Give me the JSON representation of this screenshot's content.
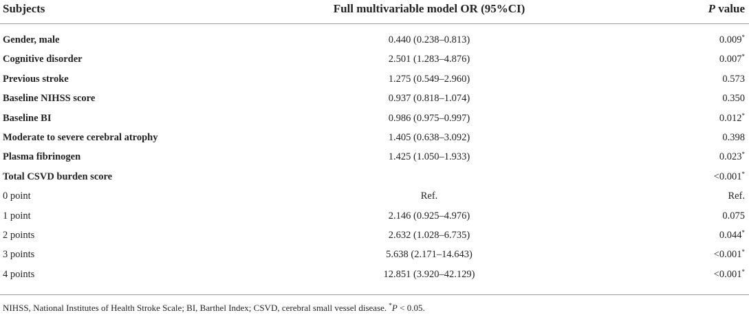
{
  "table": {
    "headers": {
      "subjects": "Subjects",
      "or": "Full multivariable model OR (95%CI)",
      "p_italic": "P",
      "p_rest": " value"
    },
    "rows": [
      {
        "subject": "Gender, male",
        "bold": true,
        "or": "0.440 (0.238–0.813)",
        "p": "0.009",
        "sig": "*"
      },
      {
        "subject": "Cognitive disorder",
        "bold": true,
        "or": "2.501 (1.283–4.876)",
        "p": "0.007",
        "sig": "*"
      },
      {
        "subject": "Previous stroke",
        "bold": true,
        "or": "1.275 (0.549–2.960)",
        "p": "0.573",
        "sig": ""
      },
      {
        "subject": "Baseline NIHSS score",
        "bold": true,
        "or": "0.937 (0.818–1.074)",
        "p": "0.350",
        "sig": ""
      },
      {
        "subject": "Baseline BI",
        "bold": true,
        "or": "0.986 (0.975–0.997)",
        "p": "0.012",
        "sig": "*"
      },
      {
        "subject": "Moderate to severe cerebral atrophy",
        "bold": true,
        "or": "1.405 (0.638–3.092)",
        "p": "0.398",
        "sig": ""
      },
      {
        "subject": "Plasma fibrinogen",
        "bold": true,
        "or": "1.425 (1.050–1.933)",
        "p": "0.023",
        "sig": "*"
      },
      {
        "subject": "Total CSVD burden score",
        "bold": true,
        "or": "",
        "p": "<0.001",
        "sig": "*"
      },
      {
        "subject": "0 point",
        "bold": false,
        "or": "Ref.",
        "p": "Ref.",
        "sig": ""
      },
      {
        "subject": "1 point",
        "bold": false,
        "or": "2.146 (0.925–4.976)",
        "p": "0.075",
        "sig": ""
      },
      {
        "subject": "2 points",
        "bold": false,
        "or": "2.632 (1.028–6.735)",
        "p": "0.044",
        "sig": "*"
      },
      {
        "subject": "3 points",
        "bold": false,
        "or": "5.638 (2.171–14.643)",
        "p": "<0.001",
        "sig": "*"
      },
      {
        "subject": "4 points",
        "bold": false,
        "or": "12.851 (3.920–42.129)",
        "p": "<0.001",
        "sig": "*"
      }
    ]
  },
  "footnote": {
    "text": "NIHSS, National Institutes of Health Stroke Scale; BI, Barthel Index; CSVD, cerebral small vessel disease. ",
    "sig_mark": "*",
    "p_italic": "P",
    "threshold": " < 0.05."
  }
}
